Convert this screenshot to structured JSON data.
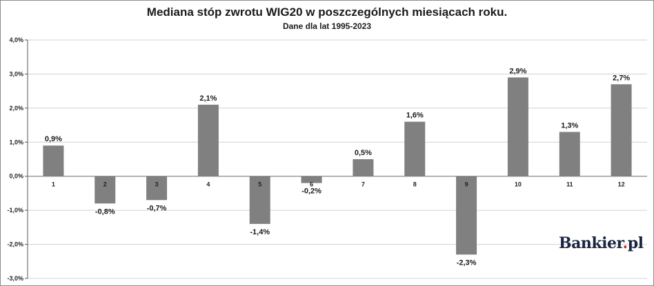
{
  "chart_data": {
    "type": "bar",
    "title": "Mediana stóp zwrotu WIG20 w poszczególnych miesiącach roku.",
    "subtitle": "Dane dla lat 1995-2023",
    "categories": [
      "1",
      "2",
      "3",
      "4",
      "5",
      "6",
      "7",
      "8",
      "9",
      "10",
      "11",
      "12"
    ],
    "values": [
      0.9,
      -0.8,
      -0.7,
      2.1,
      -1.4,
      -0.2,
      0.5,
      1.6,
      -2.3,
      2.9,
      1.3,
      2.7
    ],
    "data_labels": [
      "0,9%",
      "-0,8%",
      "-0,7%",
      "2,1%",
      "-1,4%",
      "-0,2%",
      "0,5%",
      "1,6%",
      "-2,3%",
      "2,9%",
      "1,3%",
      "2,7%"
    ],
    "yticks": [
      4.0,
      3.0,
      2.0,
      1.0,
      0.0,
      -1.0,
      -2.0,
      -3.0
    ],
    "ytick_labels": [
      "4,0%",
      "3,0%",
      "2,0%",
      "1,0%",
      "0,0%",
      "-1,0%",
      "-2,0%",
      "-3,0%"
    ],
    "ylim": [
      -3.0,
      4.0
    ],
    "grid": true,
    "bar_color": "#808080",
    "grid_color": "#d0d0d0"
  },
  "brand": {
    "main": "Bankier",
    "dot": ".",
    "suffix": "pl"
  }
}
